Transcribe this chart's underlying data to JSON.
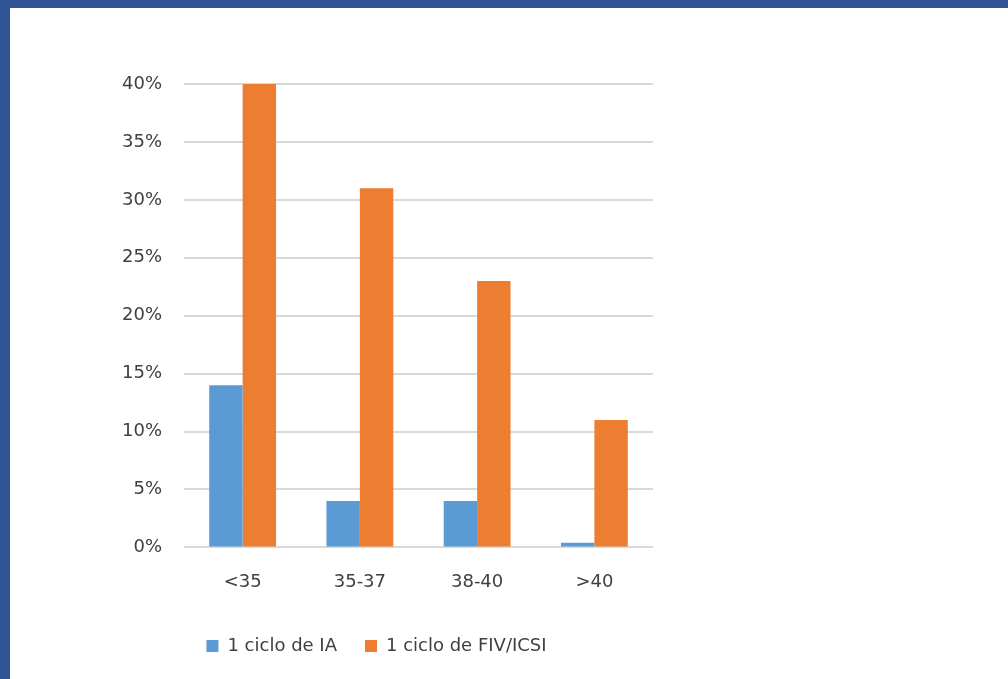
{
  "chart_data": {
    "type": "bar",
    "categories": [
      "<35",
      "35-37",
      "38-40",
      ">40"
    ],
    "series": [
      {
        "name": "1 ciclo de IA",
        "color": "#5b9bd5",
        "values": [
          14,
          4,
          4,
          0.4
        ]
      },
      {
        "name": "1 ciclo de FIV/ICSI",
        "color": "#ed7d31",
        "values": [
          40,
          31,
          23,
          11
        ]
      }
    ],
    "ylim": [
      0,
      40
    ],
    "yticks": [
      {
        "value": 0,
        "label": "0%"
      },
      {
        "value": 5,
        "label": "5%"
      },
      {
        "value": 10,
        "label": "10%"
      },
      {
        "value": 15,
        "label": "15%"
      },
      {
        "value": 20,
        "label": "20%"
      },
      {
        "value": 25,
        "label": "25%"
      },
      {
        "value": 30,
        "label": "30%"
      },
      {
        "value": 35,
        "label": "35%"
      },
      {
        "value": 40,
        "label": "40%"
      }
    ],
    "grid": "y",
    "legend": "bottom"
  }
}
